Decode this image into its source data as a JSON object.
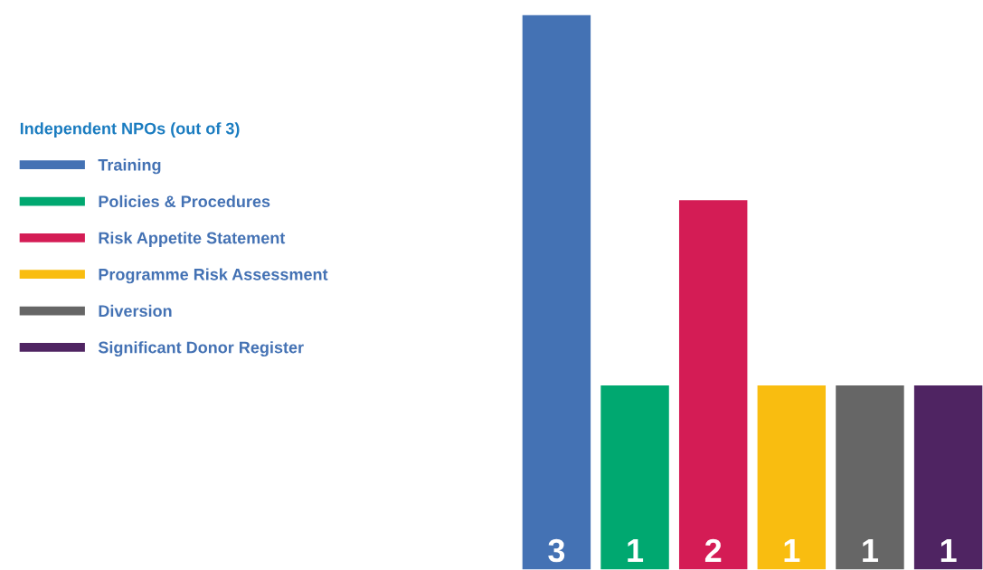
{
  "chart_data": {
    "type": "bar",
    "legend_title": "Independent NPOs (out of 3)",
    "categories": [
      null,
      null,
      null,
      null,
      null,
      null
    ],
    "series": [
      {
        "name": "Training",
        "color": "#4472b4",
        "values": [
          3,
          null,
          null,
          null,
          null,
          null
        ]
      },
      {
        "name": "Policies & Procedures",
        "color": "#00a870",
        "values": [
          null,
          1,
          null,
          null,
          null,
          null
        ]
      },
      {
        "name": "Risk Appetite Statement",
        "color": "#d41c55",
        "values": [
          null,
          null,
          2,
          null,
          null,
          null
        ]
      },
      {
        "name": "Programme Risk Assessment",
        "color": "#f9bd10",
        "values": [
          null,
          null,
          null,
          1,
          null,
          null
        ]
      },
      {
        "name": "Diversion",
        "color": "#666666",
        "values": [
          null,
          null,
          null,
          null,
          1,
          null
        ]
      },
      {
        "name": "Significant Donor Register",
        "color": "#4f2462",
        "values": [
          null,
          null,
          null,
          null,
          null,
          1
        ]
      }
    ],
    "ylim": [
      0,
      3
    ],
    "stacked": true,
    "data_labels": true,
    "legend": "left"
  }
}
